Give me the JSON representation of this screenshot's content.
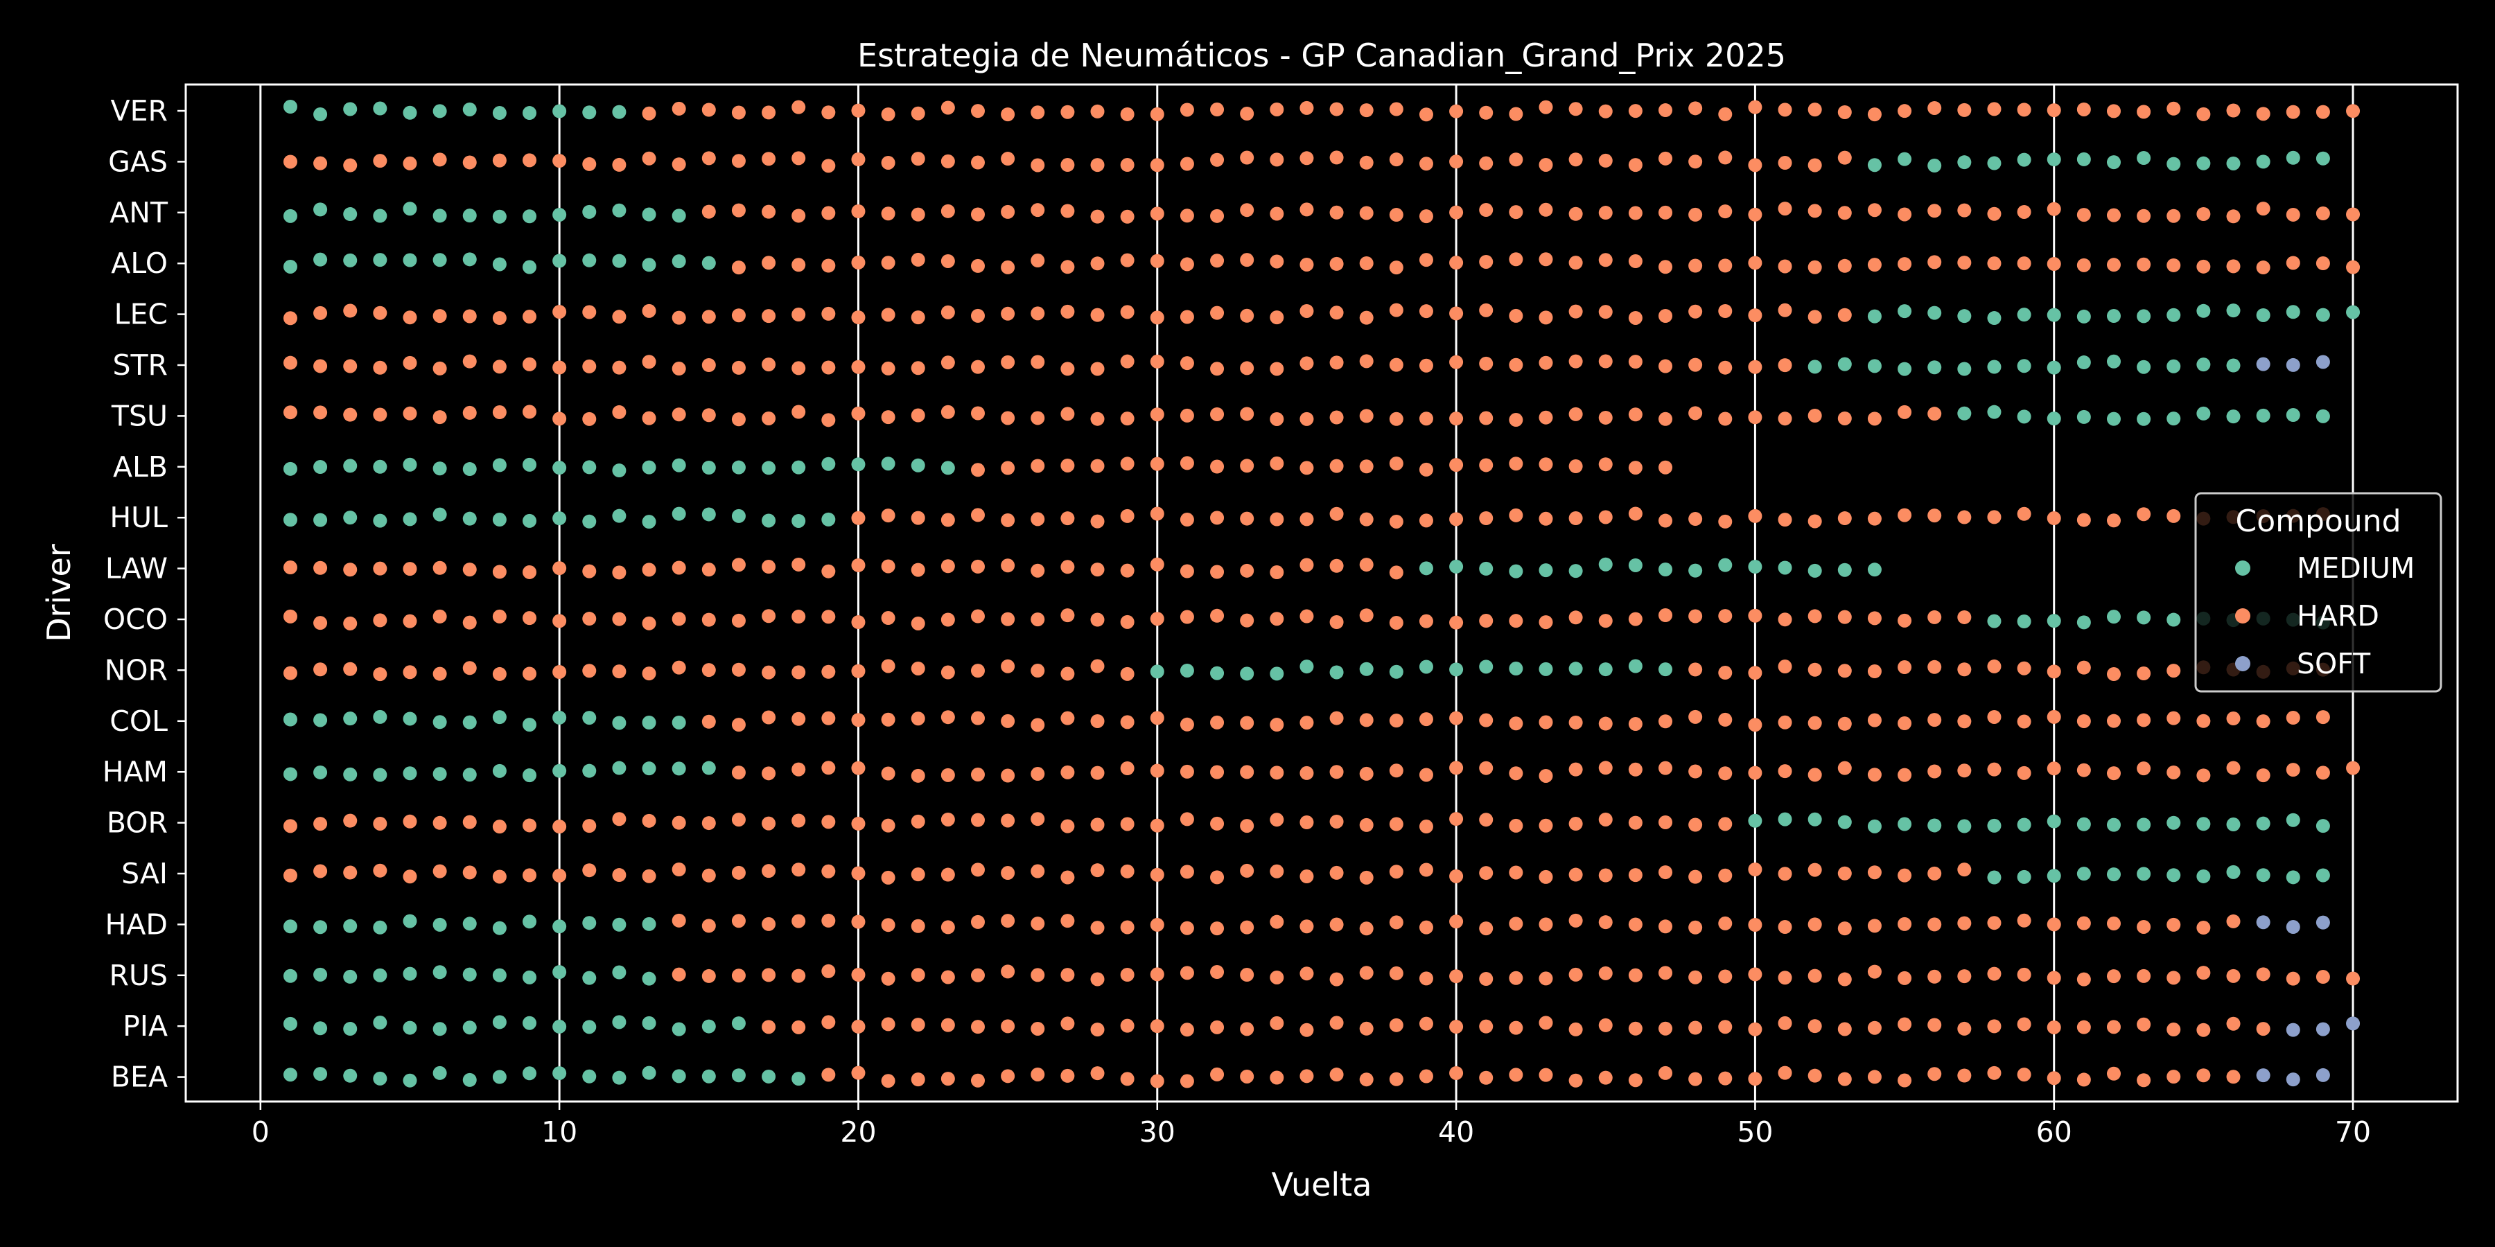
{
  "chart_data": {
    "type": "scatter",
    "title": "Estrategia de Neumáticos - GP Canadian_Grand_Prix 2025",
    "xlabel": "Vuelta",
    "ylabel": "Driver",
    "xlim": [
      -2.5,
      73.5
    ],
    "x_ticks": [
      0,
      10,
      20,
      30,
      40,
      50,
      60,
      70
    ],
    "grid": "vertical",
    "legend": {
      "title": "Compound",
      "placement": "right",
      "entries": [
        {
          "name": "MEDIUM",
          "color": "#66c2a5"
        },
        {
          "name": "HARD",
          "color": "#fc8d62"
        },
        {
          "name": "SOFT",
          "color": "#8da0cb"
        }
      ]
    },
    "drivers": [
      "VER",
      "GAS",
      "ANT",
      "ALO",
      "LEC",
      "STR",
      "TSU",
      "ALB",
      "HUL",
      "LAW",
      "OCO",
      "NOR",
      "COL",
      "HAM",
      "BOR",
      "SAI",
      "HAD",
      "RUS",
      "PIA",
      "BEA"
    ],
    "stints": [
      {
        "driver": "VER",
        "compound": "MEDIUM",
        "from": 1,
        "to": 12
      },
      {
        "driver": "VER",
        "compound": "HARD",
        "from": 13,
        "to": 70
      },
      {
        "driver": "GAS",
        "compound": "HARD",
        "from": 1,
        "to": 53
      },
      {
        "driver": "GAS",
        "compound": "MEDIUM",
        "from": 54,
        "to": 69
      },
      {
        "driver": "ANT",
        "compound": "MEDIUM",
        "from": 1,
        "to": 14
      },
      {
        "driver": "ANT",
        "compound": "HARD",
        "from": 15,
        "to": 70
      },
      {
        "driver": "ALO",
        "compound": "MEDIUM",
        "from": 1,
        "to": 15
      },
      {
        "driver": "ALO",
        "compound": "HARD",
        "from": 16,
        "to": 70
      },
      {
        "driver": "LEC",
        "compound": "HARD",
        "from": 1,
        "to": 53
      },
      {
        "driver": "LEC",
        "compound": "MEDIUM",
        "from": 54,
        "to": 70
      },
      {
        "driver": "STR",
        "compound": "HARD",
        "from": 1,
        "to": 51
      },
      {
        "driver": "STR",
        "compound": "MEDIUM",
        "from": 52,
        "to": 66
      },
      {
        "driver": "STR",
        "compound": "SOFT",
        "from": 67,
        "to": 69
      },
      {
        "driver": "TSU",
        "compound": "HARD",
        "from": 1,
        "to": 56
      },
      {
        "driver": "TSU",
        "compound": "MEDIUM",
        "from": 57,
        "to": 69
      },
      {
        "driver": "ALB",
        "compound": "MEDIUM",
        "from": 1,
        "to": 23
      },
      {
        "driver": "ALB",
        "compound": "HARD",
        "from": 24,
        "to": 47
      },
      {
        "driver": "HUL",
        "compound": "MEDIUM",
        "from": 1,
        "to": 19
      },
      {
        "driver": "HUL",
        "compound": "HARD",
        "from": 20,
        "to": 69
      },
      {
        "driver": "LAW",
        "compound": "HARD",
        "from": 1,
        "to": 38
      },
      {
        "driver": "LAW",
        "compound": "MEDIUM",
        "from": 39,
        "to": 54
      },
      {
        "driver": "OCO",
        "compound": "HARD",
        "from": 1,
        "to": 57
      },
      {
        "driver": "OCO",
        "compound": "MEDIUM",
        "from": 58,
        "to": 69
      },
      {
        "driver": "NOR",
        "compound": "HARD",
        "from": 1,
        "to": 29
      },
      {
        "driver": "NOR",
        "compound": "MEDIUM",
        "from": 30,
        "to": 47
      },
      {
        "driver": "NOR",
        "compound": "HARD",
        "from": 48,
        "to": 69
      },
      {
        "driver": "COL",
        "compound": "MEDIUM",
        "from": 1,
        "to": 14
      },
      {
        "driver": "COL",
        "compound": "HARD",
        "from": 15,
        "to": 69
      },
      {
        "driver": "HAM",
        "compound": "MEDIUM",
        "from": 1,
        "to": 15
      },
      {
        "driver": "HAM",
        "compound": "HARD",
        "from": 16,
        "to": 70
      },
      {
        "driver": "BOR",
        "compound": "HARD",
        "from": 1,
        "to": 49
      },
      {
        "driver": "BOR",
        "compound": "MEDIUM",
        "from": 50,
        "to": 69
      },
      {
        "driver": "SAI",
        "compound": "HARD",
        "from": 1,
        "to": 57
      },
      {
        "driver": "SAI",
        "compound": "MEDIUM",
        "from": 58,
        "to": 69
      },
      {
        "driver": "HAD",
        "compound": "MEDIUM",
        "from": 1,
        "to": 13
      },
      {
        "driver": "HAD",
        "compound": "HARD",
        "from": 14,
        "to": 66
      },
      {
        "driver": "HAD",
        "compound": "SOFT",
        "from": 67,
        "to": 69
      },
      {
        "driver": "RUS",
        "compound": "MEDIUM",
        "from": 1,
        "to": 13
      },
      {
        "driver": "RUS",
        "compound": "HARD",
        "from": 14,
        "to": 70
      },
      {
        "driver": "PIA",
        "compound": "MEDIUM",
        "from": 1,
        "to": 16
      },
      {
        "driver": "PIA",
        "compound": "HARD",
        "from": 17,
        "to": 67
      },
      {
        "driver": "PIA",
        "compound": "SOFT",
        "from": 68,
        "to": 70
      },
      {
        "driver": "BEA",
        "compound": "MEDIUM",
        "from": 1,
        "to": 18
      },
      {
        "driver": "BEA",
        "compound": "HARD",
        "from": 19,
        "to": 66
      },
      {
        "driver": "BEA",
        "compound": "SOFT",
        "from": 67,
        "to": 69
      }
    ]
  }
}
